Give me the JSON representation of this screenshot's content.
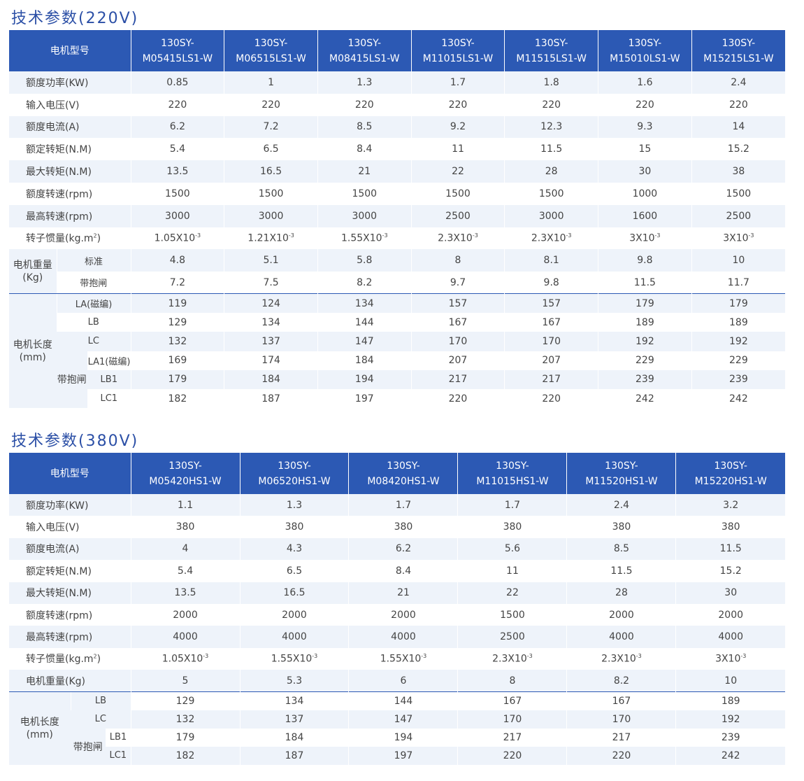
{
  "t220": {
    "title": "技术参数(220V)",
    "header_label": "电机型号",
    "models": [
      {
        "a": "130SY-",
        "b": "M05415LS1-W"
      },
      {
        "a": "130SY-",
        "b": "M06515LS1-W"
      },
      {
        "a": "130SY-",
        "b": "M08415LS1-W"
      },
      {
        "a": "130SY-",
        "b": "M11015LS1-W"
      },
      {
        "a": "130SY-",
        "b": "M11515LS1-W"
      },
      {
        "a": "130SY-",
        "b": "M15010LS1-W"
      },
      {
        "a": "130SY-",
        "b": "M15215LS1-W"
      }
    ],
    "rows": [
      {
        "label": "额度功率(KW)",
        "values": [
          "0.85",
          "1",
          "1.3",
          "1.7",
          "1.8",
          "1.6",
          "2.4"
        ]
      },
      {
        "label": "输入电压(V)",
        "values": [
          "220",
          "220",
          "220",
          "220",
          "220",
          "220",
          "220"
        ]
      },
      {
        "label": "额度电流(A)",
        "values": [
          "6.2",
          "7.2",
          "8.5",
          "9.2",
          "12.3",
          "9.3",
          "14"
        ]
      },
      {
        "label": "额定转矩(N.M)",
        "values": [
          "5.4",
          "6.5",
          "8.4",
          "11",
          "11.5",
          "15",
          "15.2"
        ]
      },
      {
        "label": "最大转矩(N.M)",
        "values": [
          "13.5",
          "16.5",
          "21",
          "22",
          "28",
          "30",
          "38"
        ]
      },
      {
        "label": "额度转速(rpm)",
        "values": [
          "1500",
          "1500",
          "1500",
          "1500",
          "1500",
          "1000",
          "1500"
        ]
      },
      {
        "label": "最高转速(rpm)",
        "values": [
          "3000",
          "3000",
          "3000",
          "2500",
          "3000",
          "1600",
          "2500"
        ]
      }
    ],
    "inertia": {
      "label": "转子惯量(kg.m",
      "sup": "2",
      "label_end": ")",
      "exp": "-3",
      "values": [
        "1.05X10",
        "1.21X10",
        "1.55X10",
        "2.3X10",
        "2.3X10",
        "3X10",
        "3X10"
      ]
    },
    "weight": {
      "group": "电机重量",
      "unit": "(Kg)",
      "rows": [
        {
          "label": "标准",
          "values": [
            "4.8",
            "5.1",
            "5.8",
            "8",
            "8.1",
            "9.8",
            "10"
          ]
        },
        {
          "label": "带抱闸",
          "values": [
            "7.2",
            "7.5",
            "8.2",
            "9.7",
            "9.8",
            "11.5",
            "11.7"
          ]
        }
      ]
    },
    "length": {
      "group": "电机长度",
      "unit": "(mm)",
      "brake": "带抱闸",
      "rows": [
        {
          "label": "LA(磁编)",
          "values": [
            "119",
            "124",
            "134",
            "157",
            "157",
            "179",
            "179"
          ]
        },
        {
          "label": "LB",
          "values": [
            "129",
            "134",
            "144",
            "167",
            "167",
            "189",
            "189"
          ]
        },
        {
          "label": "LC",
          "values": [
            "132",
            "137",
            "147",
            "170",
            "170",
            "192",
            "192"
          ]
        },
        {
          "label": "LA1(磁编)",
          "values": [
            "169",
            "174",
            "184",
            "207",
            "207",
            "229",
            "229"
          ]
        },
        {
          "label": "LB1",
          "values": [
            "179",
            "184",
            "194",
            "217",
            "217",
            "239",
            "239"
          ]
        },
        {
          "label": "LC1",
          "values": [
            "182",
            "187",
            "197",
            "220",
            "220",
            "242",
            "242"
          ]
        }
      ]
    }
  },
  "t380": {
    "title": "技术参数(380V)",
    "header_label": "电机型号",
    "models": [
      {
        "a": "130SY-",
        "b": "M05420HS1-W"
      },
      {
        "a": "130SY-",
        "b": "M06520HS1-W"
      },
      {
        "a": "130SY-",
        "b": "M08420HS1-W"
      },
      {
        "a": "130SY-",
        "b": "M11015HS1-W"
      },
      {
        "a": "130SY-",
        "b": "M11520HS1-W"
      },
      {
        "a": "130SY-",
        "b": "M15220HS1-W"
      }
    ],
    "rows": [
      {
        "label": "额度功率(KW)",
        "values": [
          "1.1",
          "1.3",
          "1.7",
          "1.7",
          "2.4",
          "3.2"
        ]
      },
      {
        "label": "输入电压(V)",
        "values": [
          "380",
          "380",
          "380",
          "380",
          "380",
          "380"
        ]
      },
      {
        "label": "额度电流(A)",
        "values": [
          "4",
          "4.3",
          "6.2",
          "5.6",
          "8.5",
          "11.5"
        ]
      },
      {
        "label": "额定转矩(N.M)",
        "values": [
          "5.4",
          "6.5",
          "8.4",
          "11",
          "11.5",
          "15.2"
        ]
      },
      {
        "label": "最大转矩(N.M)",
        "values": [
          "13.5",
          "16.5",
          "21",
          "22",
          "28",
          "30"
        ]
      },
      {
        "label": "额度转速(rpm)",
        "values": [
          "2000",
          "2000",
          "2000",
          "1500",
          "2000",
          "2000"
        ]
      },
      {
        "label": "最高转速(rpm)",
        "values": [
          "4000",
          "4000",
          "4000",
          "2500",
          "4000",
          "4000"
        ]
      }
    ],
    "inertia": {
      "label": "转子惯量(kg.m",
      "sup": "2",
      "label_end": ")",
      "exp": "-3",
      "values": [
        "1.05X10",
        "1.55X10",
        "1.55X10",
        "2.3X10",
        "2.3X10",
        "3X10"
      ]
    },
    "weight": {
      "label": "电机重量(Kg)",
      "values": [
        "5",
        "5.3",
        "6",
        "8",
        "8.2",
        "10"
      ]
    },
    "length": {
      "group": "电机长度",
      "unit": "(mm)",
      "brake": "带抱闸",
      "rows": [
        {
          "label": "LB",
          "values": [
            "129",
            "134",
            "144",
            "167",
            "167",
            "189"
          ]
        },
        {
          "label": "LC",
          "values": [
            "132",
            "137",
            "147",
            "170",
            "170",
            "192"
          ]
        },
        {
          "label": "LB1",
          "values": [
            "179",
            "184",
            "194",
            "217",
            "217",
            "239"
          ]
        },
        {
          "label": "LC1",
          "values": [
            "182",
            "187",
            "197",
            "220",
            "220",
            "242"
          ]
        }
      ]
    }
  },
  "colors": {
    "header_bg": "#2c59b4",
    "title": "#2b4fa6",
    "stripe": "#eef3fa"
  }
}
